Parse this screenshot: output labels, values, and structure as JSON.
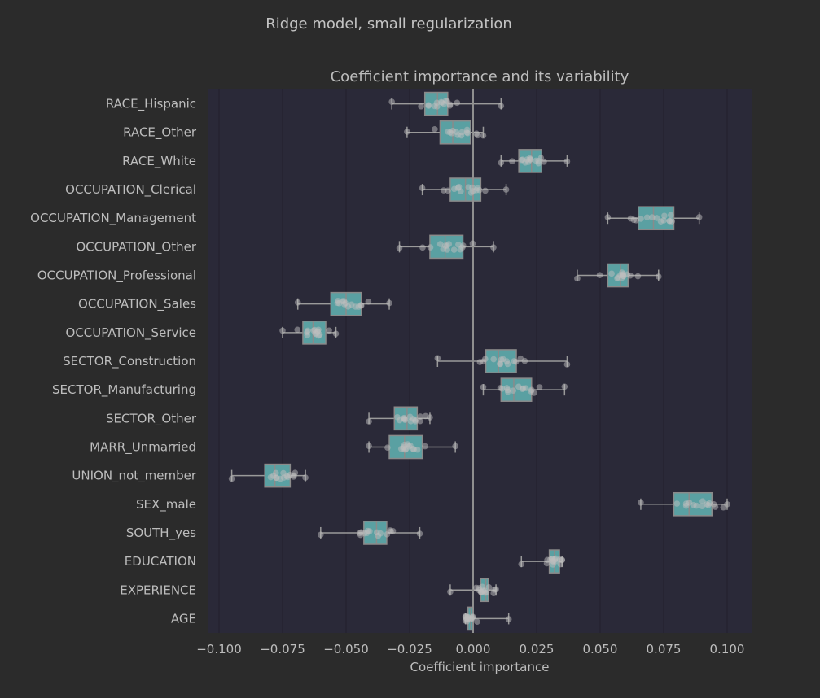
{
  "suptitle": "Ridge model, small regularization",
  "chart_data": {
    "type": "boxplot",
    "title": "Coefficient importance and its variability",
    "xlabel": "Coefficient importance",
    "ylabel": "",
    "xlim": [
      -0.105,
      0.109
    ],
    "xticks": [
      -0.1,
      -0.075,
      -0.05,
      -0.025,
      0.0,
      0.025,
      0.05,
      0.075,
      0.1
    ],
    "xtick_labels": [
      "−0.100",
      "−0.075",
      "−0.050",
      "−0.025",
      "0.000",
      "0.025",
      "0.050",
      "0.075",
      "0.100"
    ],
    "vertical_reference_line": 0.0,
    "grid": "vertical",
    "colors": {
      "background": "#2b2b2b",
      "plot_background": "#2a2938",
      "box_fill": "#5aa0a2",
      "box_edge": "#8a8a8a",
      "whisker": "#9a9a9a",
      "points": "#bdbdbd",
      "zero_line": "#8f8f8f",
      "grid": "#232230"
    },
    "categories": [
      "RACE_Hispanic",
      "RACE_Other",
      "RACE_White",
      "OCCUPATION_Clerical",
      "OCCUPATION_Management",
      "OCCUPATION_Other",
      "OCCUPATION_Professional",
      "OCCUPATION_Sales",
      "OCCUPATION_Service",
      "SECTOR_Construction",
      "SECTOR_Manufacturing",
      "SECTOR_Other",
      "MARR_Unmarried",
      "UNION_not_member",
      "SEX_male",
      "SOUTH_yes",
      "EDUCATION",
      "EXPERIENCE",
      "AGE"
    ],
    "boxes": [
      {
        "whisker_low": -0.032,
        "q1": -0.019,
        "median": -0.014,
        "q3": -0.01,
        "whisker_high": 0.011
      },
      {
        "whisker_low": -0.026,
        "q1": -0.013,
        "median": -0.008,
        "q3": -0.001,
        "whisker_high": 0.004
      },
      {
        "whisker_low": 0.011,
        "q1": 0.018,
        "median": 0.023,
        "q3": 0.027,
        "whisker_high": 0.037
      },
      {
        "whisker_low": -0.02,
        "q1": -0.009,
        "median": -0.003,
        "q3": 0.003,
        "whisker_high": 0.013
      },
      {
        "whisker_low": 0.053,
        "q1": 0.065,
        "median": 0.071,
        "q3": 0.079,
        "whisker_high": 0.089
      },
      {
        "whisker_low": -0.029,
        "q1": -0.017,
        "median": -0.011,
        "q3": -0.004,
        "whisker_high": 0.008
      },
      {
        "whisker_low": 0.041,
        "q1": 0.053,
        "median": 0.058,
        "q3": 0.061,
        "whisker_high": 0.073
      },
      {
        "whisker_low": -0.069,
        "q1": -0.056,
        "median": -0.05,
        "q3": -0.044,
        "whisker_high": -0.033
      },
      {
        "whisker_low": -0.075,
        "q1": -0.067,
        "median": -0.063,
        "q3": -0.058,
        "whisker_high": -0.054
      },
      {
        "whisker_low": -0.014,
        "q1": 0.005,
        "median": 0.01,
        "q3": 0.017,
        "whisker_high": 0.037
      },
      {
        "whisker_low": 0.004,
        "q1": 0.011,
        "median": 0.016,
        "q3": 0.023,
        "whisker_high": 0.036
      },
      {
        "whisker_low": -0.041,
        "q1": -0.031,
        "median": -0.026,
        "q3": -0.022,
        "whisker_high": -0.017
      },
      {
        "whisker_low": -0.041,
        "q1": -0.033,
        "median": -0.027,
        "q3": -0.02,
        "whisker_high": -0.007
      },
      {
        "whisker_low": -0.095,
        "q1": -0.082,
        "median": -0.078,
        "q3": -0.072,
        "whisker_high": -0.066
      },
      {
        "whisker_low": 0.066,
        "q1": 0.079,
        "median": 0.085,
        "q3": 0.094,
        "whisker_high": 0.1
      },
      {
        "whisker_low": -0.06,
        "q1": -0.043,
        "median": -0.038,
        "q3": -0.034,
        "whisker_high": -0.021
      },
      {
        "whisker_low": 0.019,
        "q1": 0.03,
        "median": 0.032,
        "q3": 0.034,
        "whisker_high": 0.035
      },
      {
        "whisker_low": -0.009,
        "q1": 0.003,
        "median": 0.005,
        "q3": 0.006,
        "whisker_high": 0.009
      },
      {
        "whisker_low": -0.003,
        "q1": -0.002,
        "median": -0.001,
        "q3": 0.0,
        "whisker_high": 0.014
      }
    ]
  }
}
